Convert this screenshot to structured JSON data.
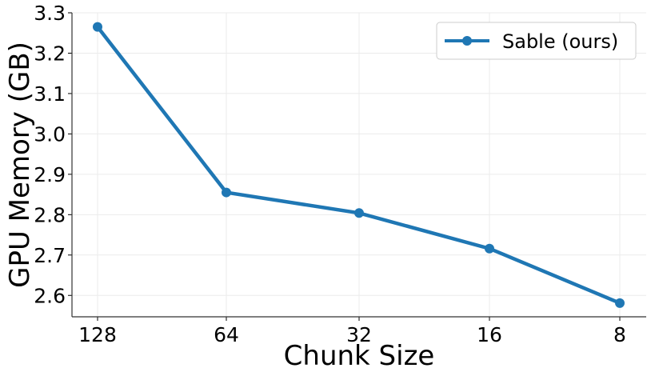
{
  "chart_data": {
    "type": "line",
    "title": "",
    "xlabel": "Chunk Size",
    "ylabel": "GPU Memory (GB)",
    "categories": [
      "128",
      "64",
      "32",
      "16",
      "8"
    ],
    "series": [
      {
        "name": "Sable (ours)",
        "values": [
          3.265,
          2.855,
          2.804,
          2.716,
          2.581
        ],
        "color": "#1f77b4",
        "marker": "circle"
      }
    ],
    "yticks": [
      "2.6",
      "2.7",
      "2.8",
      "2.9",
      "3.0",
      "3.1",
      "3.2",
      "3.3"
    ],
    "ylim": [
      2.547,
      3.3
    ],
    "grid": true,
    "legend": "top-right"
  }
}
